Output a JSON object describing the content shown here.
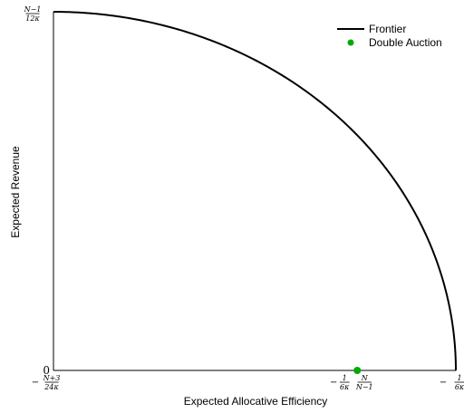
{
  "chart_data": {
    "type": "line",
    "xlabel": "Expected Allocative Efficiency",
    "ylabel": "Expected Revenue",
    "xlim": [
      0,
      1
    ],
    "ylim": [
      0,
      1
    ],
    "x_ticks": [
      {
        "x": 0,
        "sign": "−",
        "num": "N+3",
        "den": "24κ"
      },
      {
        "x": 0.755,
        "sign": "−",
        "num": "1",
        "den": "6κ",
        "num2": "N",
        "den2": "N−1"
      },
      {
        "x": 1.0,
        "sign": "−",
        "num": "1",
        "den": "6κ"
      }
    ],
    "y_ticks": [
      {
        "y": 0,
        "text": "0"
      },
      {
        "y": 1,
        "num": "N−1",
        "den": "12κ"
      }
    ],
    "series": [
      {
        "name": "Frontier",
        "style": "line",
        "color": "#000000",
        "x": [
          0,
          0.1,
          0.2,
          0.3,
          0.4,
          0.5,
          0.6,
          0.7,
          0.8,
          0.85,
          0.9,
          0.95,
          0.98,
          1.0
        ],
        "y": [
          1.0,
          0.995,
          0.98,
          0.954,
          0.917,
          0.866,
          0.8,
          0.714,
          0.6,
          0.527,
          0.436,
          0.312,
          0.199,
          0.0
        ]
      },
      {
        "name": "Double Auction",
        "style": "point",
        "color": "#00aa00",
        "x": [
          0.755
        ],
        "y": [
          0.0
        ]
      }
    ],
    "legend": {
      "placement": "top-right",
      "items": [
        "Frontier",
        "Double Auction"
      ]
    },
    "grid": false
  }
}
